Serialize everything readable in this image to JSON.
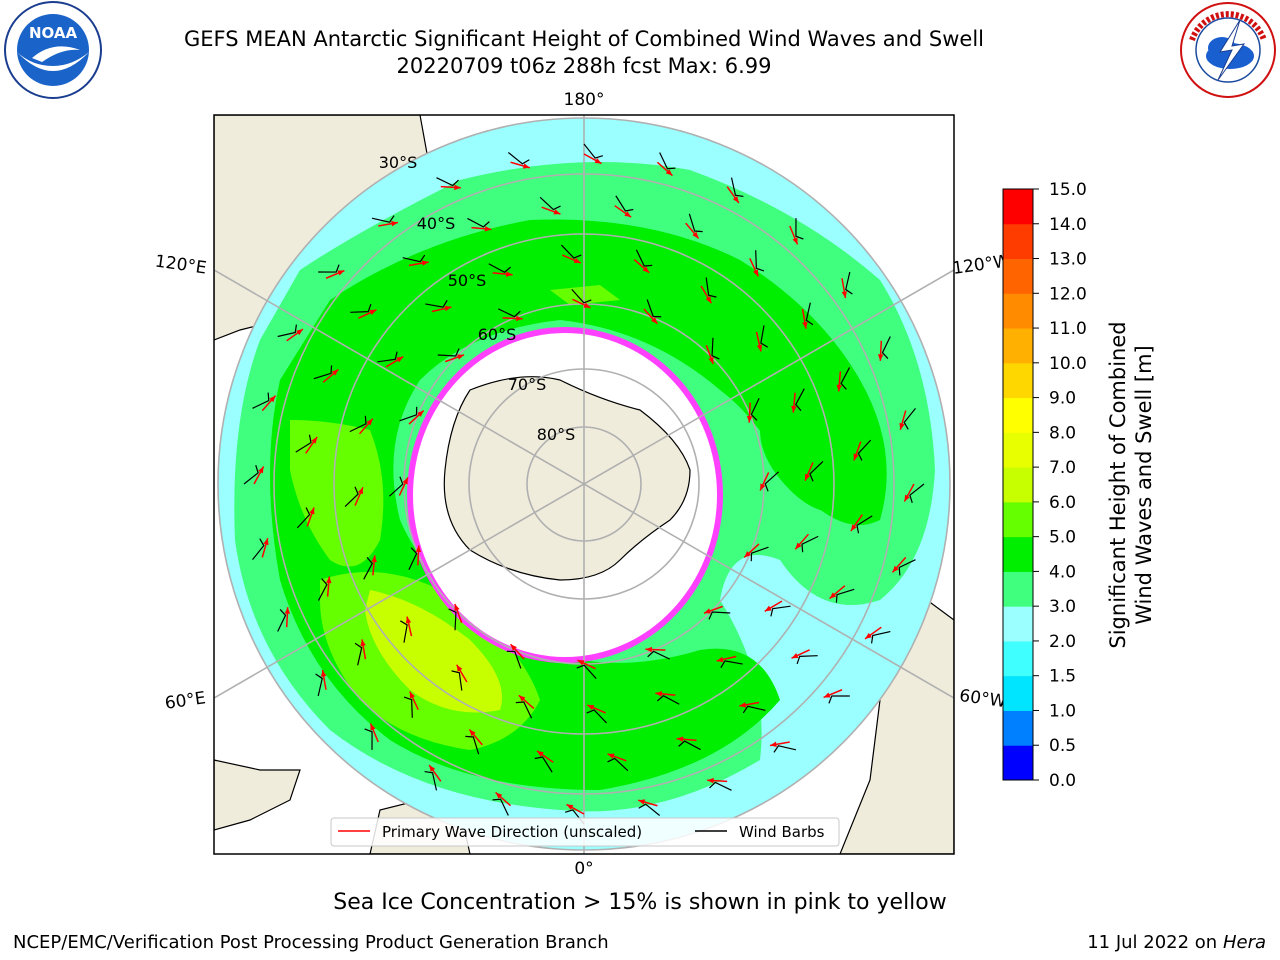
{
  "header": {
    "title_line1": "GEFS MEAN Antarctic Significant Height of Combined Wind Waves and Swell",
    "title_line2": "20220709 t06z 288h fcst   Max: 6.99"
  },
  "logos": {
    "left": {
      "icon": "noaa-logo-icon",
      "text": "NOAA",
      "ring_text": "NATIONAL OCEANIC AND ATMOSPHERIC ADMINISTRATION · U.S. DEPARTMENT OF COMMERCE"
    },
    "right": {
      "icon": "nws-logo-icon",
      "ring_text": "NATIONAL WEATHER SERVICE"
    }
  },
  "map": {
    "projection": "south-polar-stereographic",
    "longitude_labels": {
      "top": "180°",
      "bottom": "0°",
      "upper_left": "120°E",
      "upper_right": "120°W",
      "lower_left": "60°E",
      "lower_right": "60°W"
    },
    "latitude_labels": [
      "30°S",
      "40°S",
      "50°S",
      "60°S",
      "70°S",
      "80°S"
    ],
    "legend": [
      {
        "label": "Primary Wave Direction (unscaled)",
        "color": "#ff0000"
      },
      {
        "label": "Wind Barbs",
        "color": "#000000"
      }
    ]
  },
  "colorbar": {
    "label_line1": "Significant Height of Combined",
    "label_line2": "Wind Waves and Swell [m]",
    "ticks": [
      "0.0",
      "0.5",
      "1.0",
      "1.5",
      "2.0",
      "3.0",
      "4.0",
      "5.0",
      "6.0",
      "7.0",
      "8.0",
      "9.0",
      "10.0",
      "11.0",
      "12.0",
      "13.0",
      "14.0",
      "15.0"
    ],
    "colors": [
      "#0000ff",
      "#0080ff",
      "#00e5ff",
      "#40ffff",
      "#9bffff",
      "#40ff7f",
      "#00ee00",
      "#66ff00",
      "#c8ff00",
      "#e8ff00",
      "#ffff00",
      "#ffd700",
      "#ffb000",
      "#ff8c00",
      "#ff6400",
      "#ff3c00",
      "#ff0000"
    ]
  },
  "note": "Sea Ice Concentration > 15% is shown in pink to yellow",
  "footer": {
    "left": "NCEP/EMC/Verification Post Processing Product Generation Branch",
    "date": "11 Jul 2022 on ",
    "host": "Hera"
  }
}
